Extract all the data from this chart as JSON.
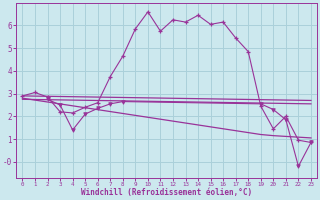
{
  "xlabel": "Windchill (Refroidissement éolien,°C)",
  "background_color": "#cce8ee",
  "grid_color": "#aad0da",
  "line_color": "#993399",
  "xlim": [
    -0.5,
    23.5
  ],
  "ylim": [
    -0.7,
    7.0
  ],
  "yticks": [
    0,
    1,
    2,
    3,
    4,
    5,
    6
  ],
  "ytick_labels": [
    "-0",
    "1",
    "2",
    "3",
    "4",
    "5",
    "6"
  ],
  "xticks": [
    0,
    1,
    2,
    3,
    4,
    5,
    6,
    7,
    8,
    9,
    10,
    11,
    12,
    13,
    14,
    15,
    16,
    17,
    18,
    19,
    20,
    21,
    22,
    23
  ],
  "series1_x": [
    0,
    1,
    2,
    3,
    4,
    5,
    6,
    7,
    8,
    9,
    10,
    11,
    12,
    13,
    14,
    15,
    16,
    17,
    18,
    19,
    20,
    21,
    22,
    23
  ],
  "series1_y": [
    2.9,
    3.05,
    2.85,
    2.2,
    2.15,
    2.4,
    2.6,
    3.75,
    4.65,
    5.85,
    6.6,
    5.75,
    6.25,
    6.15,
    6.45,
    6.05,
    6.15,
    5.45,
    4.85,
    2.45,
    1.45,
    2.0,
    0.95,
    0.85
  ],
  "series2_x": [
    0,
    23
  ],
  "series2_y": [
    2.9,
    2.7
  ],
  "series3_x": [
    0,
    23
  ],
  "series3_y": [
    2.75,
    2.55
  ],
  "series4_x": [
    0,
    19,
    20,
    23
  ],
  "series4_y": [
    2.8,
    1.2,
    1.15,
    1.05
  ],
  "series5_x": [
    2,
    3,
    4,
    5,
    6,
    7,
    8,
    19,
    20,
    21,
    22,
    23
  ],
  "series5_y": [
    2.75,
    2.5,
    1.4,
    2.1,
    2.35,
    2.55,
    2.65,
    2.55,
    2.3,
    1.85,
    -0.2,
    0.85
  ]
}
